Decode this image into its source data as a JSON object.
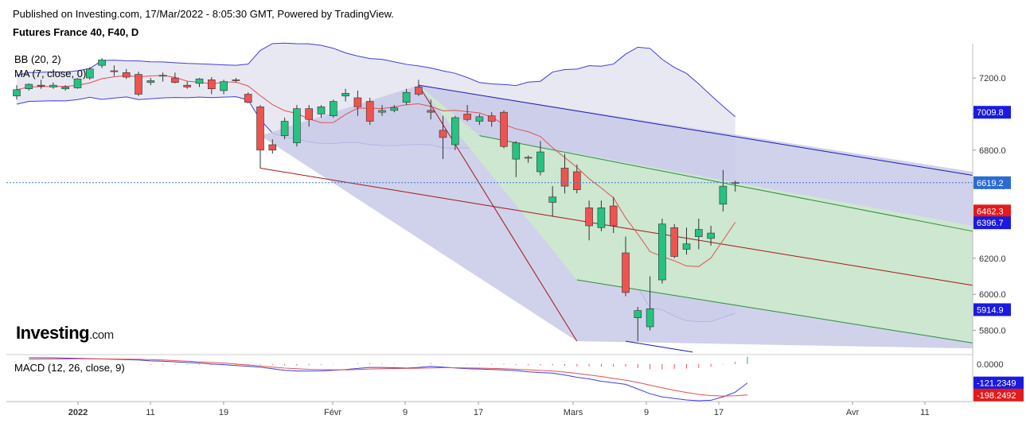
{
  "header": {
    "published": "Published on Investing.com, 17/Mar/2022 - 8:05:30 GMT, Powered by TradingView.",
    "instrument": "Futures France 40, F40, D"
  },
  "indicators": {
    "bb": "BB (20, 2)",
    "ma": "MA (7, close, 0)",
    "macd": "MACD (12, 26, close, 9)"
  },
  "logo": {
    "text": "Investing",
    "suffix": ".com"
  },
  "colors": {
    "up": "#26c281",
    "down": "#ef5350",
    "bb_fill": "#e8e8f3",
    "bb_line": "#3f3fd9",
    "ma_line": "#e05050",
    "channel_blue": "#c8cae8",
    "channel_green": "#cde9cd",
    "price_line": "#3a7bd5",
    "macd_line": "#3f3fd9",
    "signal_line": "#e05050"
  },
  "chart_data": {
    "type": "candlestick",
    "price_axis": {
      "ticks": [
        "7200.0",
        "7000.0",
        "6800.0",
        "6600.0",
        "6400.0",
        "6200.0",
        "6000.0",
        "5800.0"
      ],
      "ylim": [
        5670,
        7390
      ]
    },
    "date_axis": [
      "2022",
      "11",
      "19",
      "Févr",
      "9",
      "17",
      "Mars",
      "9",
      "17",
      "Avr",
      "11"
    ],
    "price_tags": [
      {
        "label": "7009.8",
        "value": 7009.8,
        "color": "#1a1ae0"
      },
      {
        "label": "6619.2",
        "value": 6619.2,
        "color": "#2b6cd4"
      },
      {
        "label": "6462.3",
        "value": 6462.3,
        "color": "#e21b1b"
      },
      {
        "label": "6396.7",
        "value": 6396.7,
        "color": "#1a1ae0"
      },
      {
        "label": "5914.9",
        "value": 5914.9,
        "color": "#1a1ae0"
      }
    ],
    "candles": [
      {
        "o": 7100,
        "h": 7160,
        "l": 7080,
        "c": 7135
      },
      {
        "o": 7140,
        "h": 7170,
        "l": 7130,
        "c": 7165
      },
      {
        "o": 7160,
        "h": 7190,
        "l": 7140,
        "c": 7155
      },
      {
        "o": 7150,
        "h": 7175,
        "l": 7140,
        "c": 7160
      },
      {
        "o": 7140,
        "h": 7160,
        "l": 7130,
        "c": 7150
      },
      {
        "o": 7145,
        "h": 7200,
        "l": 7140,
        "c": 7195
      },
      {
        "o": 7200,
        "h": 7260,
        "l": 7190,
        "c": 7250
      },
      {
        "o": 7270,
        "h": 7310,
        "l": 7255,
        "c": 7300
      },
      {
        "o": 7240,
        "h": 7270,
        "l": 7210,
        "c": 7235
      },
      {
        "o": 7230,
        "h": 7250,
        "l": 7195,
        "c": 7205
      },
      {
        "o": 7220,
        "h": 7235,
        "l": 7100,
        "c": 7110
      },
      {
        "o": 7175,
        "h": 7200,
        "l": 7160,
        "c": 7185
      },
      {
        "o": 7210,
        "h": 7230,
        "l": 7180,
        "c": 7215
      },
      {
        "o": 7200,
        "h": 7230,
        "l": 7170,
        "c": 7175
      },
      {
        "o": 7160,
        "h": 7180,
        "l": 7140,
        "c": 7150
      },
      {
        "o": 7170,
        "h": 7200,
        "l": 7150,
        "c": 7195
      },
      {
        "o": 7190,
        "h": 7205,
        "l": 7110,
        "c": 7140
      },
      {
        "o": 7130,
        "h": 7190,
        "l": 7110,
        "c": 7180
      },
      {
        "o": 7190,
        "h": 7200,
        "l": 7175,
        "c": 7185
      },
      {
        "o": 7110,
        "h": 7120,
        "l": 7060,
        "c": 7065
      },
      {
        "o": 7040,
        "h": 7050,
        "l": 6700,
        "c": 6800
      },
      {
        "o": 6830,
        "h": 6860,
        "l": 6780,
        "c": 6800
      },
      {
        "o": 6880,
        "h": 6980,
        "l": 6860,
        "c": 6960
      },
      {
        "o": 6840,
        "h": 7050,
        "l": 6820,
        "c": 7030
      },
      {
        "o": 7030,
        "h": 7050,
        "l": 6930,
        "c": 6970
      },
      {
        "o": 7000,
        "h": 7050,
        "l": 6980,
        "c": 7040
      },
      {
        "o": 6990,
        "h": 7080,
        "l": 6980,
        "c": 7070
      },
      {
        "o": 7100,
        "h": 7140,
        "l": 7070,
        "c": 7115
      },
      {
        "o": 7090,
        "h": 7130,
        "l": 6990,
        "c": 7040
      },
      {
        "o": 7070,
        "h": 7090,
        "l": 6940,
        "c": 6960
      },
      {
        "o": 7010,
        "h": 7050,
        "l": 6990,
        "c": 7020
      },
      {
        "o": 7020,
        "h": 7050,
        "l": 7010,
        "c": 7035
      },
      {
        "o": 7065,
        "h": 7140,
        "l": 7050,
        "c": 7120
      },
      {
        "o": 7150,
        "h": 7190,
        "l": 7100,
        "c": 7110
      },
      {
        "o": 7020,
        "h": 7080,
        "l": 6970,
        "c": 7010
      },
      {
        "o": 6910,
        "h": 6990,
        "l": 6750,
        "c": 6870
      },
      {
        "o": 6830,
        "h": 6990,
        "l": 6800,
        "c": 6980
      },
      {
        "o": 7000,
        "h": 7050,
        "l": 6960,
        "c": 6970
      },
      {
        "o": 6960,
        "h": 7000,
        "l": 6940,
        "c": 6985
      },
      {
        "o": 6990,
        "h": 7010,
        "l": 6930,
        "c": 6960
      },
      {
        "o": 7010,
        "h": 7020,
        "l": 6810,
        "c": 6820
      },
      {
        "o": 6750,
        "h": 6850,
        "l": 6650,
        "c": 6840
      },
      {
        "o": 6755,
        "h": 6770,
        "l": 6730,
        "c": 6760
      },
      {
        "o": 6680,
        "h": 6850,
        "l": 6660,
        "c": 6790
      },
      {
        "o": 6510,
        "h": 6600,
        "l": 6430,
        "c": 6540
      },
      {
        "o": 6700,
        "h": 6780,
        "l": 6560,
        "c": 6600
      },
      {
        "o": 6680,
        "h": 6720,
        "l": 6560,
        "c": 6580
      },
      {
        "o": 6480,
        "h": 6520,
        "l": 6300,
        "c": 6380
      },
      {
        "o": 6370,
        "h": 6520,
        "l": 6350,
        "c": 6480
      },
      {
        "o": 6490,
        "h": 6540,
        "l": 6340,
        "c": 6380
      },
      {
        "o": 6230,
        "h": 6320,
        "l": 5990,
        "c": 6010
      },
      {
        "o": 5870,
        "h": 5930,
        "l": 5740,
        "c": 5910
      },
      {
        "o": 5820,
        "h": 6100,
        "l": 5800,
        "c": 5920
      },
      {
        "o": 6080,
        "h": 6420,
        "l": 6060,
        "c": 6390
      },
      {
        "o": 6370,
        "h": 6390,
        "l": 6200,
        "c": 6210
      },
      {
        "o": 6250,
        "h": 6370,
        "l": 6220,
        "c": 6280
      },
      {
        "o": 6320,
        "h": 6420,
        "l": 6250,
        "c": 6360
      },
      {
        "o": 6310,
        "h": 6380,
        "l": 6270,
        "c": 6340
      },
      {
        "o": 6500,
        "h": 6690,
        "l": 6460,
        "c": 6600
      },
      {
        "o": 6620,
        "h": 6630,
        "l": 6570,
        "c": 6619.2
      }
    ],
    "macd": {
      "tags": [
        {
          "label": "0.0000"
        },
        {
          "label": "-121.2349",
          "color": "#1a1ae0"
        },
        {
          "label": "-198.2492",
          "color": "#e21b1b"
        }
      ],
      "macd_line": [
        40,
        40,
        40,
        38,
        36,
        34,
        32,
        30,
        28,
        26,
        20,
        18,
        14,
        10,
        6,
        0,
        -4,
        -10,
        -14,
        -20,
        -30,
        -40,
        -45,
        -45,
        -44,
        -40,
        -35,
        -28,
        -22,
        -22,
        -24,
        -26,
        -22,
        -15,
        -20,
        -25,
        -30,
        -32,
        -35,
        -38,
        -42,
        -50,
        -55,
        -58,
        -70,
        -85,
        -95,
        -110,
        -120,
        -130,
        -160,
        -190,
        -210,
        -220,
        -230,
        -235,
        -232,
        -210,
        -180,
        -121.2349
      ],
      "signal_line": [
        30,
        31,
        32,
        32,
        33,
        33,
        33,
        32,
        31,
        30,
        28,
        26,
        22,
        18,
        14,
        10,
        6,
        0,
        -6,
        -12,
        -20,
        -26,
        -30,
        -34,
        -36,
        -37,
        -37,
        -35,
        -32,
        -30,
        -29,
        -28,
        -27,
        -25,
        -24,
        -24,
        -25,
        -26,
        -28,
        -30,
        -33,
        -37,
        -41,
        -45,
        -52,
        -60,
        -70,
        -80,
        -92,
        -103,
        -118,
        -135,
        -152,
        -168,
        -182,
        -194,
        -202,
        -205,
        -203,
        -198.2492
      ]
    }
  }
}
